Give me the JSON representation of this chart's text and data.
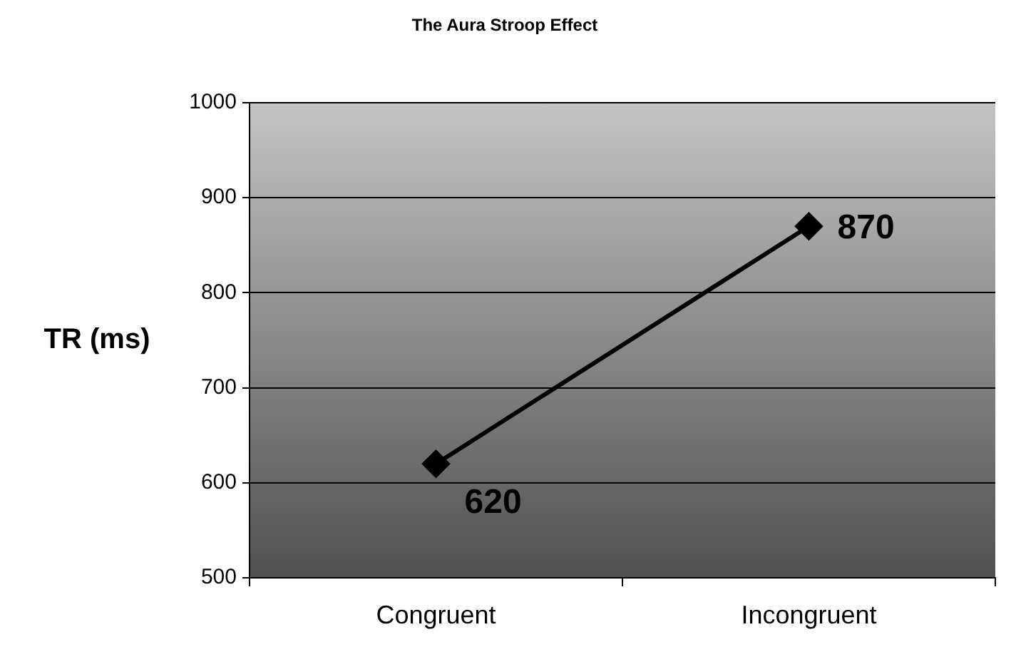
{
  "chart_data": {
    "type": "line",
    "title": "The Aura Stroop Effect",
    "ylabel": "TR (ms)",
    "categories": [
      "Congruent",
      "Incongruent"
    ],
    "series": [
      {
        "color": "#000000",
        "values": [
          620,
          870
        ]
      }
    ],
    "ylim": [
      500,
      1000
    ],
    "yticks": [
      500,
      600,
      700,
      800,
      900,
      1000
    ],
    "grid": "y",
    "legend": false,
    "marker": "diamond",
    "line_style": "solid",
    "data_labels": true
  }
}
